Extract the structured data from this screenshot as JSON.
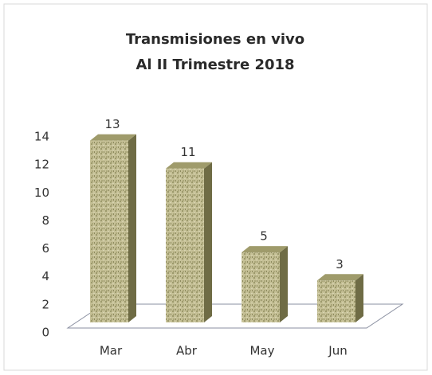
{
  "chart_data": {
    "type": "bar",
    "title": "Transmisiones en vivo",
    "subtitle": "Al II Trimestre 2018",
    "categories": [
      "Mar",
      "Abr",
      "May",
      "Jun"
    ],
    "values": [
      13,
      11,
      5,
      3
    ],
    "color": "#bdb88c",
    "ylim": [
      0,
      14
    ],
    "yticks": [
      0,
      2,
      4,
      6,
      8,
      10,
      12,
      14
    ],
    "grid": false
  }
}
